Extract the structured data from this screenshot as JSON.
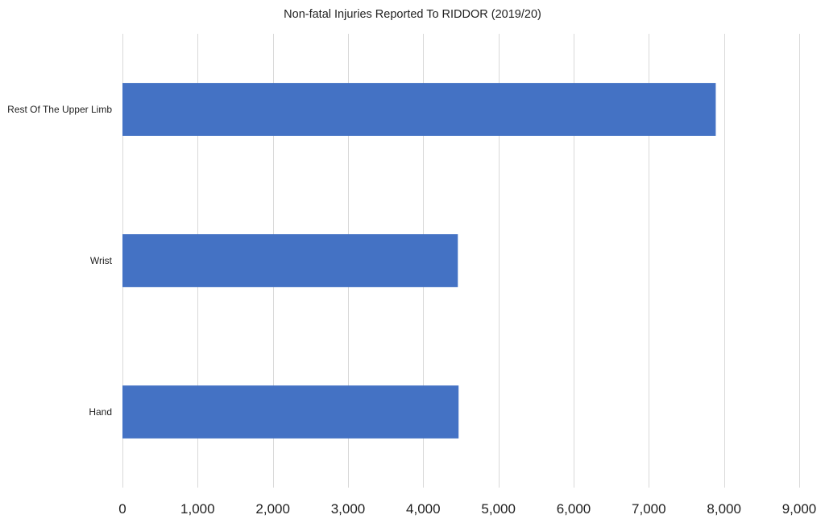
{
  "chart_data": {
    "type": "bar",
    "orientation": "horizontal",
    "title": "Non-fatal Injuries Reported To RIDDOR (2019/20)",
    "categories": [
      "Rest Of The Upper Limb",
      "Wrist",
      "Hand"
    ],
    "values": [
      7890,
      4460,
      4470
    ],
    "xlabel": "",
    "ylabel": "",
    "xlim": [
      0,
      9000
    ],
    "x_ticks": [
      0,
      1000,
      2000,
      3000,
      4000,
      5000,
      6000,
      7000,
      8000,
      9000
    ],
    "x_tick_labels": [
      "0",
      "1,000",
      "2,000",
      "3,000",
      "4,000",
      "5,000",
      "6,000",
      "7,000",
      "8,000",
      "9,000"
    ],
    "grid": true,
    "legend": "none",
    "bar_color": "#4472c4",
    "grid_color": "#d9d9d9"
  }
}
